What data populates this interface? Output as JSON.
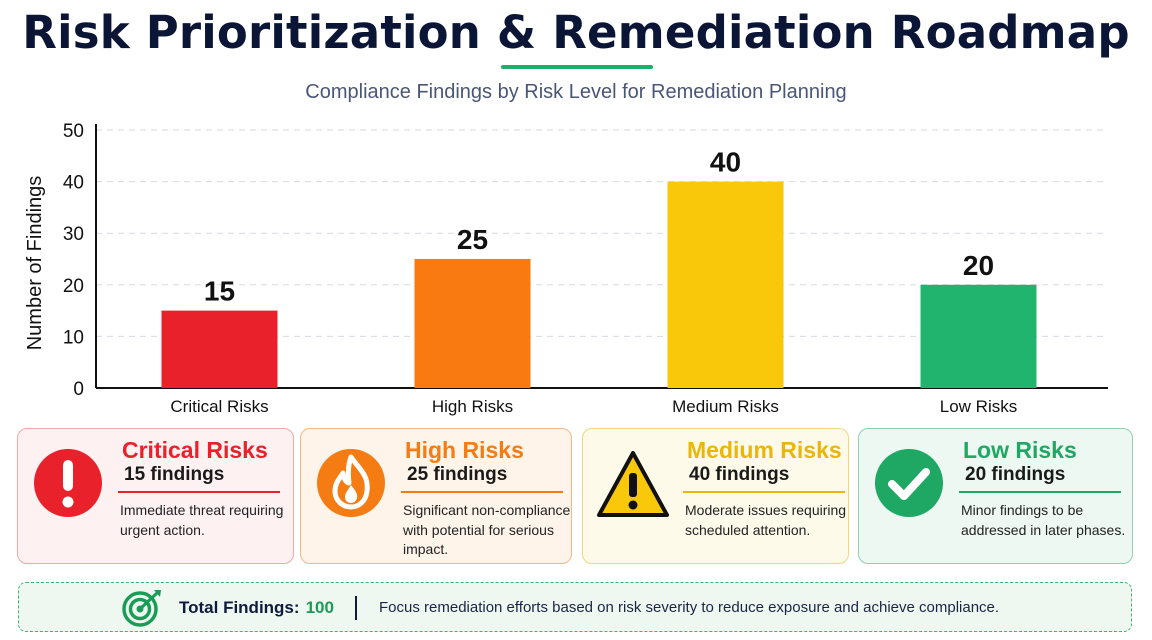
{
  "header": {
    "title": "Risk Prioritization & Remediation Roadmap",
    "subtitle": "Compliance Findings by Risk Level for Remediation Planning"
  },
  "chart_data": {
    "type": "bar",
    "categories": [
      "Critical Risks",
      "High Risks",
      "Medium Risks",
      "Low Risks"
    ],
    "values": [
      15,
      25,
      40,
      20
    ],
    "colors": [
      "#e8212b",
      "#f97a10",
      "#fac80a",
      "#20b46e"
    ],
    "title": "",
    "xlabel": "",
    "ylabel": "Number of Findings",
    "ylim": [
      0,
      50
    ],
    "yticks": [
      0,
      10,
      20,
      30,
      40,
      50
    ],
    "ytick_labels": [
      "0",
      "10",
      "20",
      "30",
      "40",
      "50"
    ],
    "data_labels": [
      "15",
      "25",
      "40",
      "20"
    ],
    "grid": true,
    "legend": "none"
  },
  "cards": [
    {
      "name": "Critical Risks",
      "count": "15 findings",
      "desc": "Immediate threat requiring urgent action.",
      "icon": "exclamation-icon",
      "accent": "#e8212b",
      "bg": "#fdf1f1",
      "border": "#f0a8a8"
    },
    {
      "name": "High Risks",
      "count": "25 findings",
      "desc": "Significant non-compliance with potential for serious impact.",
      "icon": "flame-icon",
      "accent": "#f57c12",
      "bg": "#fef4ea",
      "border": "#f6b886"
    },
    {
      "name": "Medium Risks",
      "count": "40 findings",
      "desc": "Moderate issues requiring scheduled attention.",
      "icon": "warning-triangle-icon",
      "accent": "#ebb60a",
      "bg": "#fefaea",
      "border": "#f2d67a"
    },
    {
      "name": "Low Risks",
      "count": "20 findings",
      "desc": "Minor findings to be addressed in later phases.",
      "icon": "checkmark-icon",
      "accent": "#1fa864",
      "bg": "#eef8f2",
      "border": "#90d2ad"
    }
  ],
  "footer": {
    "total_label": "Total Findings:",
    "total_value": "100",
    "message": "Focus remediation efforts based on risk severity to reduce exposure and achieve compliance.",
    "icon": "target-icon"
  }
}
